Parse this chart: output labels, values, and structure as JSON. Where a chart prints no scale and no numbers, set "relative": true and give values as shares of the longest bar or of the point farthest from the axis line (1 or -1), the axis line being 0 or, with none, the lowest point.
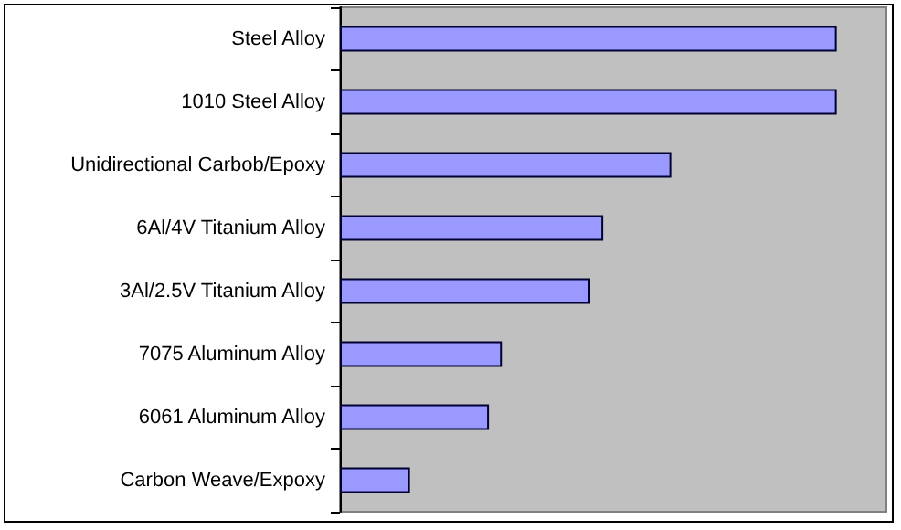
{
  "chart_data": {
    "type": "bar",
    "orientation": "horizontal",
    "relative": true,
    "categories": [
      "Steel Alloy",
      "1010 Steel Alloy",
      "Unidirectional Carbob/Epoxy",
      "6Al/4V Titanium Alloy",
      "3Al/2.5V Titanium Alloy",
      "7075 Aluminum Alloy",
      "6061 Aluminum Alloy",
      "Carbon Weave/Expoxy"
    ],
    "series": [
      {
        "color": "#9999ff",
        "values": [
          1,
          1,
          0.667,
          0.53,
          0.504,
          0.326,
          0.3,
          0.141
        ]
      }
    ]
  }
}
